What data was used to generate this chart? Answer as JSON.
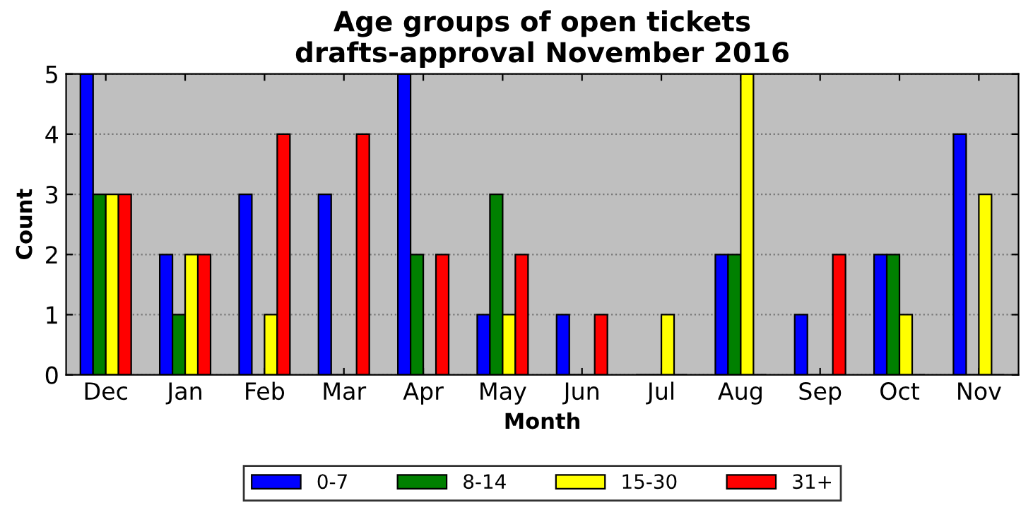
{
  "chart_data": {
    "type": "bar",
    "title": "Age groups of open tickets\ndrafts-approval November 2016",
    "xlabel": "Month",
    "ylabel": "Count",
    "categories": [
      "Dec",
      "Jan",
      "Feb",
      "Mar",
      "Apr",
      "May",
      "Jun",
      "Jul",
      "Aug",
      "Sep",
      "Oct",
      "Nov"
    ],
    "series": [
      {
        "name": "0-7",
        "color": "#0000ff",
        "values": [
          5,
          2,
          3,
          3,
          5,
          1,
          1,
          0,
          2,
          1,
          2,
          4
        ]
      },
      {
        "name": "8-14",
        "color": "#008000",
        "values": [
          3,
          1,
          0,
          0,
          2,
          3,
          0,
          0,
          2,
          0,
          2,
          0
        ]
      },
      {
        "name": "15-30",
        "color": "#ffff00",
        "values": [
          3,
          2,
          1,
          0,
          0,
          1,
          0,
          1,
          5,
          0,
          1,
          3
        ]
      },
      {
        "name": "31+",
        "color": "#ff0000",
        "values": [
          3,
          2,
          4,
          4,
          2,
          2,
          1,
          0,
          0,
          2,
          0,
          0
        ]
      }
    ],
    "ylim": [
      0,
      5
    ],
    "yticks": [
      0,
      1,
      2,
      3,
      4,
      5
    ],
    "grid": "y",
    "legend": "bottom"
  }
}
